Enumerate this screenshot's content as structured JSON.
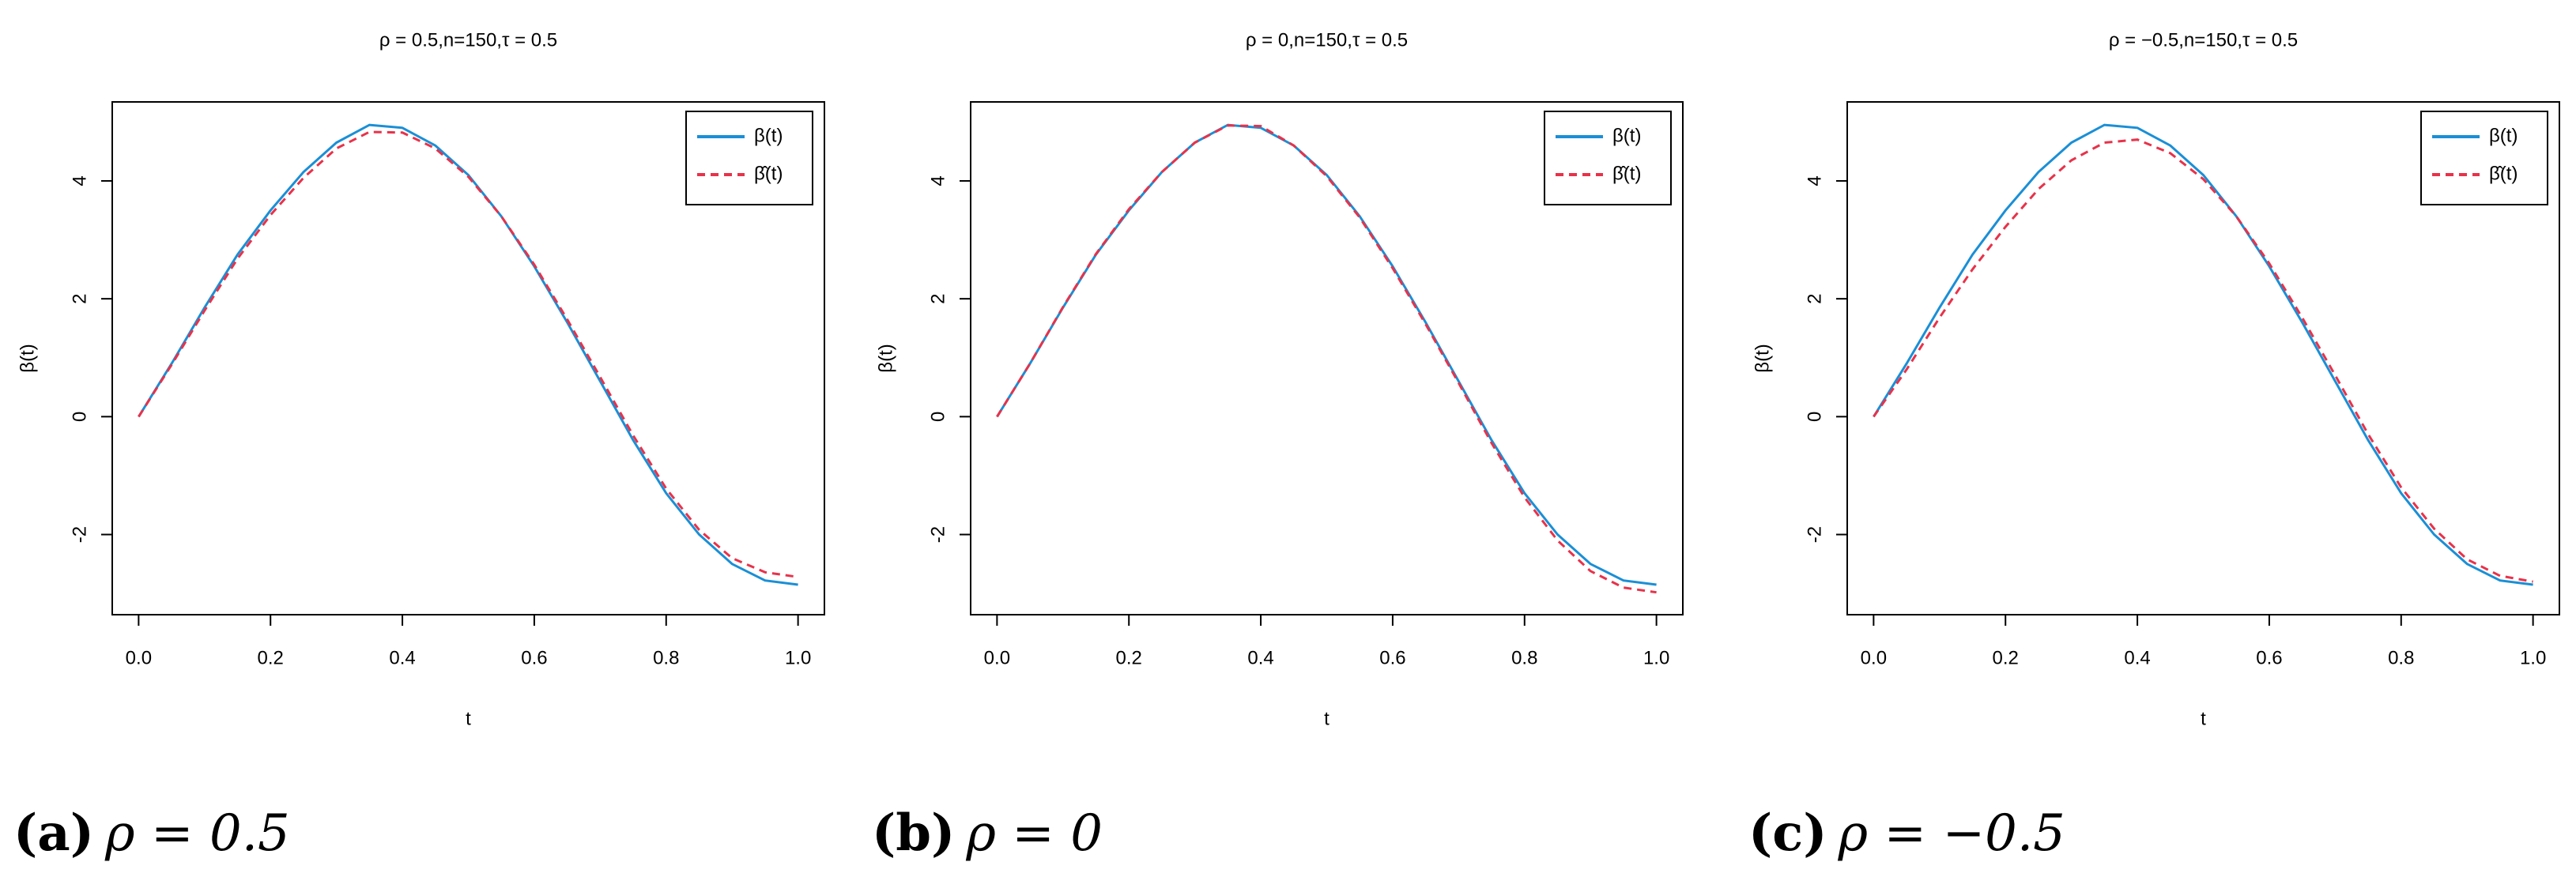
{
  "chart_data": [
    {
      "type": "line",
      "title": "ρ = 0.5,n=150,τ = 0.5",
      "x_label": "t",
      "y_label": "β(t)",
      "caption_label": "(a)",
      "caption": "ρ = 0.5",
      "x": [
        0,
        0.05,
        0.1,
        0.15,
        0.2,
        0.25,
        0.3,
        0.35,
        0.4,
        0.45,
        0.5,
        0.55,
        0.6,
        0.65,
        0.7,
        0.75,
        0.8,
        0.85,
        0.9,
        0.95,
        1
      ],
      "series": [
        {
          "name": "β(t)",
          "color": "#1a8fd6",
          "dash": false,
          "values": [
            0,
            0.9,
            1.85,
            2.75,
            3.5,
            4.15,
            4.65,
            4.95,
            4.9,
            4.6,
            4.1,
            3.4,
            2.55,
            1.6,
            0.6,
            -0.4,
            -1.3,
            -2.0,
            -2.5,
            -2.78,
            -2.85
          ]
        },
        {
          "name": "β̂(t)",
          "color": "#e8324a",
          "dash": true,
          "values": [
            0,
            0.88,
            1.8,
            2.68,
            3.42,
            4.05,
            4.55,
            4.83,
            4.82,
            4.55,
            4.07,
            3.4,
            2.58,
            1.65,
            0.67,
            -0.32,
            -1.22,
            -1.92,
            -2.4,
            -2.64,
            -2.72
          ]
        }
      ],
      "xlim": [
        -0.04,
        1.04
      ],
      "xticks": [
        {
          "value": 0,
          "label": "0.0"
        },
        0.2,
        0.4,
        0.6,
        0.8,
        {
          "value": 1,
          "label": "1.0"
        }
      ],
      "ylim": [
        -3.36,
        5.34
      ],
      "yticks": [
        -2,
        0,
        2,
        4
      ],
      "legend": "top-right"
    },
    {
      "type": "line",
      "title": "ρ = 0,n=150,τ = 0.5",
      "x_label": "t",
      "y_label": "β(t)",
      "caption_label": "(b)",
      "caption": "ρ = 0",
      "x": [
        0,
        0.05,
        0.1,
        0.15,
        0.2,
        0.25,
        0.3,
        0.35,
        0.4,
        0.45,
        0.5,
        0.55,
        0.6,
        0.65,
        0.7,
        0.75,
        0.8,
        0.85,
        0.9,
        0.95,
        1
      ],
      "series": [
        {
          "name": "β(t)",
          "color": "#1a8fd6",
          "dash": false,
          "values": [
            0,
            0.9,
            1.85,
            2.75,
            3.5,
            4.15,
            4.65,
            4.95,
            4.9,
            4.6,
            4.1,
            3.4,
            2.55,
            1.6,
            0.6,
            -0.4,
            -1.3,
            -2.0,
            -2.5,
            -2.78,
            -2.85
          ]
        },
        {
          "name": "β̂(t)",
          "color": "#e8324a",
          "dash": true,
          "values": [
            0,
            0.9,
            1.86,
            2.76,
            3.52,
            4.15,
            4.65,
            4.94,
            4.93,
            4.6,
            4.08,
            3.38,
            2.52,
            1.57,
            0.57,
            -0.45,
            -1.37,
            -2.1,
            -2.62,
            -2.9,
            -2.98
          ]
        }
      ],
      "xlim": [
        -0.04,
        1.04
      ],
      "xticks": [
        {
          "value": 0,
          "label": "0.0"
        },
        0.2,
        0.4,
        0.6,
        0.8,
        {
          "value": 1,
          "label": "1.0"
        }
      ],
      "ylim": [
        -3.36,
        5.34
      ],
      "yticks": [
        -2,
        0,
        2,
        4
      ],
      "legend": "top-right"
    },
    {
      "type": "line",
      "title": "ρ = −0.5,n=150,τ = 0.5",
      "x_label": "t",
      "y_label": "β(t)",
      "caption_label": "(c)",
      "caption": "ρ = −0.5",
      "x": [
        0,
        0.05,
        0.1,
        0.15,
        0.2,
        0.25,
        0.3,
        0.35,
        0.4,
        0.45,
        0.5,
        0.55,
        0.6,
        0.65,
        0.7,
        0.75,
        0.8,
        0.85,
        0.9,
        0.95,
        1
      ],
      "series": [
        {
          "name": "β(t)",
          "color": "#1a8fd6",
          "dash": false,
          "values": [
            0,
            0.9,
            1.85,
            2.75,
            3.5,
            4.15,
            4.65,
            4.95,
            4.9,
            4.6,
            4.1,
            3.4,
            2.55,
            1.6,
            0.6,
            -0.4,
            -1.3,
            -2.0,
            -2.5,
            -2.78,
            -2.85
          ]
        },
        {
          "name": "β̂(t)",
          "color": "#e8324a",
          "dash": true,
          "values": [
            0,
            0.8,
            1.68,
            2.5,
            3.22,
            3.86,
            4.35,
            4.65,
            4.7,
            4.47,
            4.03,
            3.4,
            2.6,
            1.68,
            0.7,
            -0.3,
            -1.2,
            -1.9,
            -2.42,
            -2.7,
            -2.8
          ]
        }
      ],
      "xlim": [
        -0.04,
        1.04
      ],
      "xticks": [
        {
          "value": 0,
          "label": "0.0"
        },
        0.2,
        0.4,
        0.6,
        0.8,
        {
          "value": 1,
          "label": "1.0"
        }
      ],
      "ylim": [
        -3.36,
        5.34
      ],
      "yticks": [
        -2,
        0,
        2,
        4
      ],
      "legend": "top-right"
    }
  ]
}
